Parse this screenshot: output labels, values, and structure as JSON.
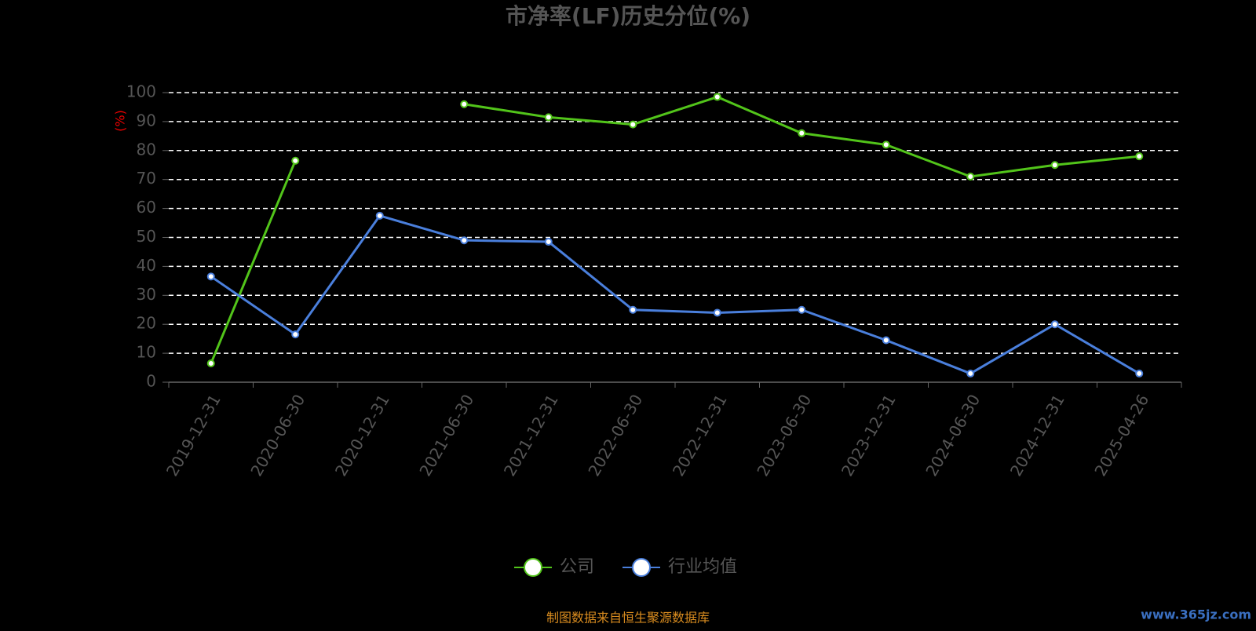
{
  "chart_data": {
    "type": "line",
    "title": "市净率(LF)历史分位(%)",
    "y_label": "(%)",
    "categories": [
      "2019-12-31",
      "2020-06-30",
      "2020-12-31",
      "2021-06-30",
      "2021-12-31",
      "2022-06-30",
      "2022-12-31",
      "2023-06-30",
      "2023-12-31",
      "2024-06-30",
      "2024-12-31",
      "2025-04-26"
    ],
    "series": [
      {
        "name": "公司",
        "color": "#52c41a",
        "values": [
          6.5,
          76.5,
          null,
          96,
          91.5,
          89,
          98.5,
          86,
          82,
          71,
          75,
          78
        ]
      },
      {
        "name": "行业均值",
        "color": "#4a7fdc",
        "values": [
          36.5,
          16.5,
          57.5,
          49,
          48.5,
          25,
          24,
          25,
          14.5,
          3,
          20,
          3
        ]
      }
    ],
    "ylim": [
      0,
      100
    ],
    "yticks": [
      0,
      10,
      20,
      30,
      40,
      50,
      60,
      70,
      80,
      90,
      100
    ],
    "grid": true,
    "source": "制图数据来自恒生聚源数据库",
    "watermark": "www.365jz.com"
  }
}
